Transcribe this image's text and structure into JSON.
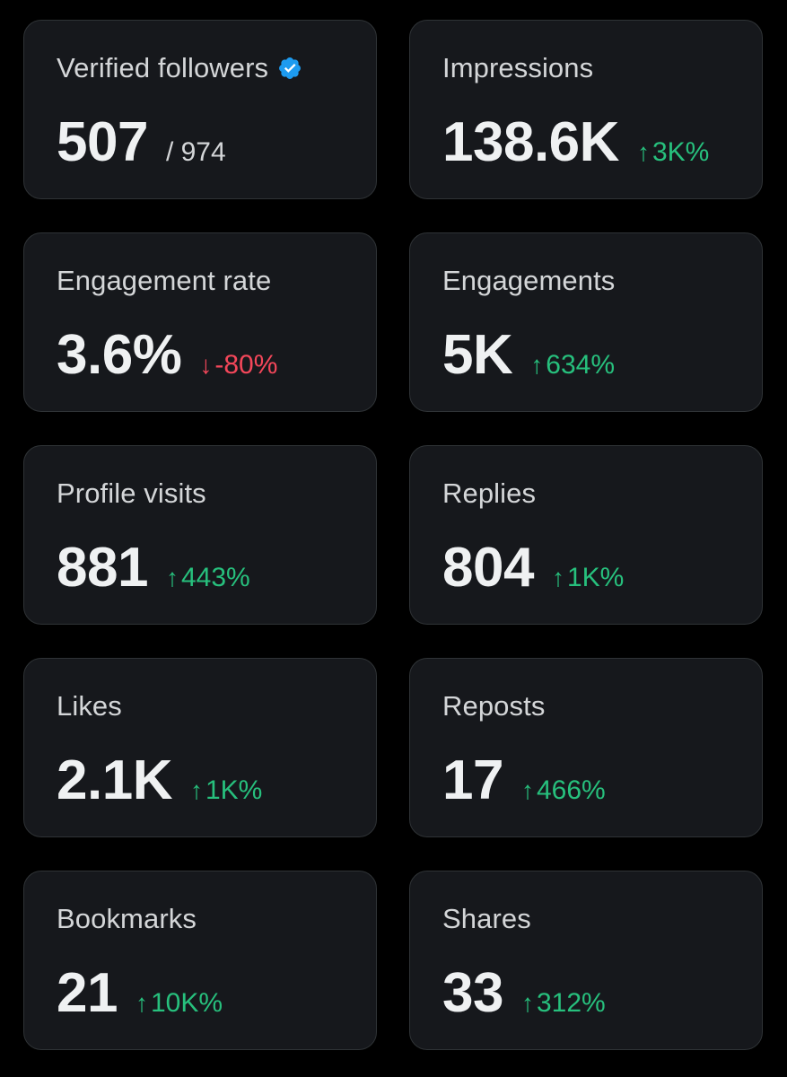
{
  "cards": [
    {
      "label": "Verified followers",
      "value": "507",
      "total": "/ 974",
      "verified_icon": "verified-badge-icon",
      "badge_color": "#1d9bf0"
    },
    {
      "label": "Impressions",
      "value": "138.6K",
      "change": "3K%",
      "direction": "up",
      "arrow": "↑"
    },
    {
      "label": "Engagement rate",
      "value": "3.6%",
      "change": "-80%",
      "direction": "down",
      "arrow": "↓"
    },
    {
      "label": "Engagements",
      "value": "5K",
      "change": "634%",
      "direction": "up",
      "arrow": "↑"
    },
    {
      "label": "Profile visits",
      "value": "881",
      "change": "443%",
      "direction": "up",
      "arrow": "↑"
    },
    {
      "label": "Replies",
      "value": "804",
      "change": "1K%",
      "direction": "up",
      "arrow": "↑"
    },
    {
      "label": "Likes",
      "value": "2.1K",
      "change": "1K%",
      "direction": "up",
      "arrow": "↑"
    },
    {
      "label": "Reposts",
      "value": "17",
      "change": "466%",
      "direction": "up",
      "arrow": "↑"
    },
    {
      "label": "Bookmarks",
      "value": "21",
      "change": "10K%",
      "direction": "up",
      "arrow": "↑"
    },
    {
      "label": "Shares",
      "value": "33",
      "change": "312%",
      "direction": "up",
      "arrow": "↑"
    }
  ],
  "colors": {
    "background": "#000000",
    "card": "#16181c",
    "border": "#2f3336",
    "up": "#27c07d",
    "down": "#f4475a"
  }
}
